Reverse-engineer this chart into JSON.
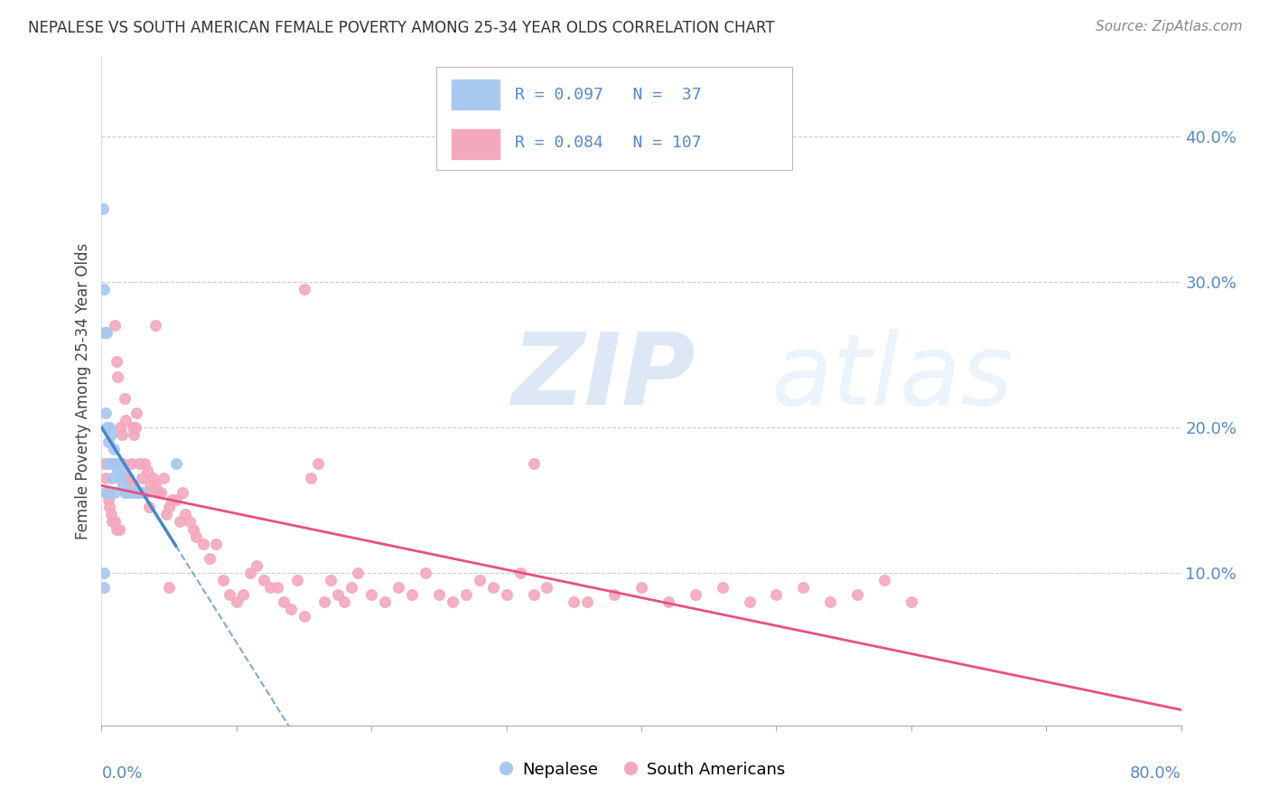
{
  "title": "NEPALESE VS SOUTH AMERICAN FEMALE POVERTY AMONG 25-34 YEAR OLDS CORRELATION CHART",
  "source": "Source: ZipAtlas.com",
  "ylabel": "Female Poverty Among 25-34 Year Olds",
  "ytick_labels": [
    "10.0%",
    "20.0%",
    "30.0%",
    "40.0%"
  ],
  "ytick_values": [
    0.1,
    0.2,
    0.3,
    0.4
  ],
  "xlim": [
    0.0,
    0.8
  ],
  "ylim": [
    -0.005,
    0.455
  ],
  "watermark": "ZIPatlas",
  "nepalese_color": "#a8c8f0",
  "south_american_color": "#f4a8be",
  "nepalese_line_color": "#4488cc",
  "south_american_line_color": "#e85080",
  "nepalese_R": 0.097,
  "nepalese_N": 37,
  "south_american_R": 0.084,
  "south_american_N": 107,
  "nepalese_x": [
    0.001,
    0.002,
    0.002,
    0.002,
    0.003,
    0.003,
    0.003,
    0.004,
    0.004,
    0.005,
    0.005,
    0.005,
    0.006,
    0.006,
    0.006,
    0.007,
    0.007,
    0.008,
    0.008,
    0.009,
    0.01,
    0.01,
    0.011,
    0.012,
    0.013,
    0.014,
    0.015,
    0.016,
    0.017,
    0.018,
    0.02,
    0.022,
    0.025,
    0.028,
    0.03,
    0.055,
    0.002
  ],
  "nepalese_y": [
    0.35,
    0.295,
    0.265,
    0.09,
    0.265,
    0.21,
    0.155,
    0.265,
    0.2,
    0.2,
    0.19,
    0.175,
    0.2,
    0.175,
    0.155,
    0.195,
    0.175,
    0.175,
    0.165,
    0.185,
    0.175,
    0.155,
    0.175,
    0.17,
    0.165,
    0.165,
    0.17,
    0.16,
    0.155,
    0.155,
    0.155,
    0.155,
    0.155,
    0.155,
    0.155,
    0.175,
    0.1
  ],
  "south_american_x": [
    0.002,
    0.003,
    0.004,
    0.005,
    0.006,
    0.007,
    0.008,
    0.009,
    0.01,
    0.01,
    0.011,
    0.011,
    0.012,
    0.013,
    0.014,
    0.015,
    0.016,
    0.017,
    0.018,
    0.019,
    0.02,
    0.021,
    0.022,
    0.023,
    0.024,
    0.025,
    0.026,
    0.027,
    0.028,
    0.029,
    0.03,
    0.032,
    0.033,
    0.034,
    0.035,
    0.036,
    0.038,
    0.04,
    0.042,
    0.044,
    0.046,
    0.048,
    0.05,
    0.052,
    0.055,
    0.058,
    0.06,
    0.062,
    0.065,
    0.068,
    0.07,
    0.075,
    0.08,
    0.085,
    0.09,
    0.095,
    0.1,
    0.105,
    0.11,
    0.115,
    0.12,
    0.125,
    0.13,
    0.135,
    0.14,
    0.145,
    0.15,
    0.155,
    0.16,
    0.165,
    0.17,
    0.175,
    0.18,
    0.185,
    0.19,
    0.2,
    0.21,
    0.22,
    0.23,
    0.24,
    0.25,
    0.26,
    0.27,
    0.28,
    0.29,
    0.3,
    0.31,
    0.32,
    0.33,
    0.35,
    0.36,
    0.38,
    0.4,
    0.42,
    0.44,
    0.46,
    0.48,
    0.5,
    0.52,
    0.54,
    0.56,
    0.58,
    0.6,
    0.32,
    0.15,
    0.04,
    0.05
  ],
  "south_american_y": [
    0.175,
    0.165,
    0.155,
    0.15,
    0.145,
    0.14,
    0.135,
    0.175,
    0.135,
    0.27,
    0.245,
    0.13,
    0.235,
    0.13,
    0.2,
    0.195,
    0.175,
    0.22,
    0.205,
    0.165,
    0.165,
    0.16,
    0.175,
    0.2,
    0.195,
    0.2,
    0.21,
    0.155,
    0.175,
    0.155,
    0.165,
    0.175,
    0.155,
    0.17,
    0.145,
    0.16,
    0.165,
    0.16,
    0.155,
    0.155,
    0.165,
    0.14,
    0.145,
    0.15,
    0.15,
    0.135,
    0.155,
    0.14,
    0.135,
    0.13,
    0.125,
    0.12,
    0.11,
    0.12,
    0.095,
    0.085,
    0.08,
    0.085,
    0.1,
    0.105,
    0.095,
    0.09,
    0.09,
    0.08,
    0.075,
    0.095,
    0.07,
    0.165,
    0.175,
    0.08,
    0.095,
    0.085,
    0.08,
    0.09,
    0.1,
    0.085,
    0.08,
    0.09,
    0.085,
    0.1,
    0.085,
    0.08,
    0.085,
    0.095,
    0.09,
    0.085,
    0.1,
    0.085,
    0.09,
    0.08,
    0.08,
    0.085,
    0.09,
    0.08,
    0.085,
    0.09,
    0.08,
    0.085,
    0.09,
    0.08,
    0.085,
    0.095,
    0.08,
    0.175,
    0.295,
    0.27,
    0.09
  ]
}
